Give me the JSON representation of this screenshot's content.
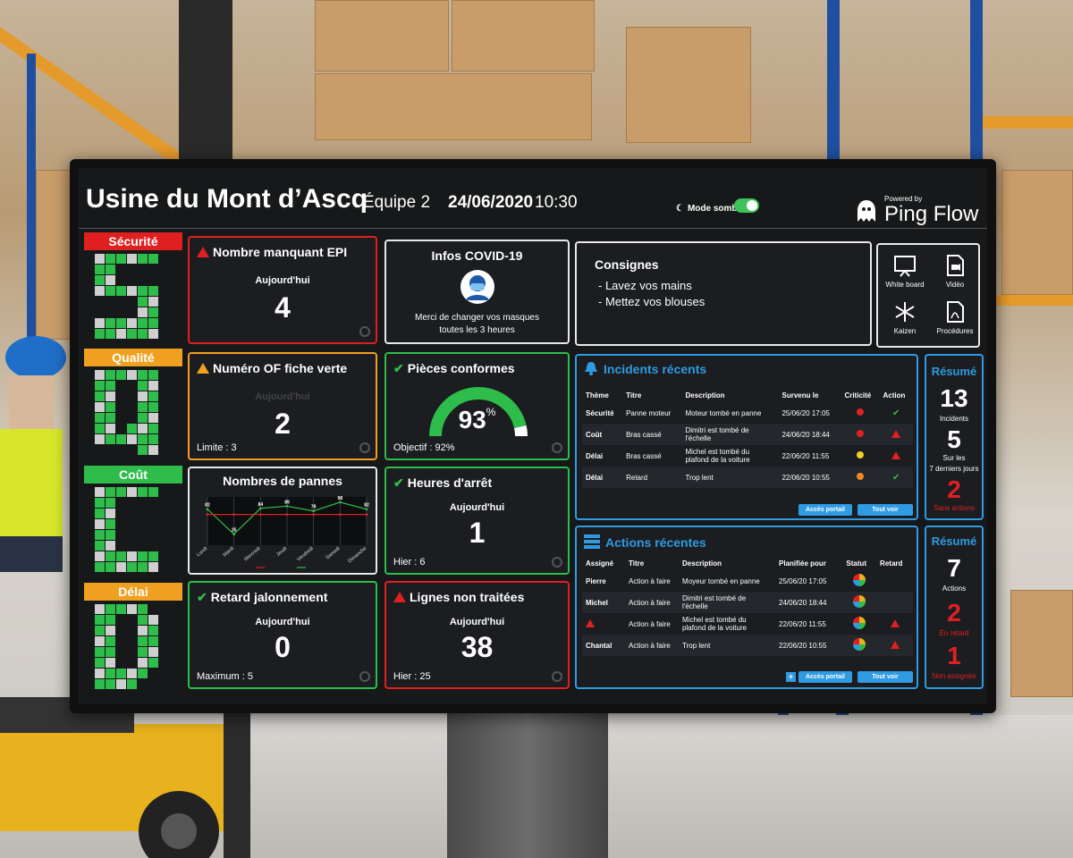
{
  "header": {
    "factory": "Usine du Mont d’Ascq",
    "team": "Équipe 2",
    "date": "24/06/2020",
    "time": "10:30",
    "dark_mode_label": "Mode sombre",
    "powered_by": "Powered by",
    "brand": "Ping Flow"
  },
  "sqcd": [
    {
      "label": "Sécurité",
      "color": "#e02020"
    },
    {
      "label": "Qualité",
      "color": "#f0a020"
    },
    {
      "label": "Coût",
      "color": "#2ebd4a"
    },
    {
      "label": "Délai",
      "color": "#f0a020"
    }
  ],
  "kpis": {
    "epi": {
      "title": "Nombre manquant EPI",
      "sub": "Aujourd'hui",
      "value": "4"
    },
    "of": {
      "title": "Numéro OF fiche verte",
      "sub": "Aujourd'hui",
      "value": "2",
      "foot": "Limite : 3"
    },
    "retard": {
      "title": "Retard jalonnement",
      "sub": "Aujourd'hui",
      "value": "0",
      "foot": "Maximum : 5"
    },
    "pieces": {
      "title": "Pièces conformes",
      "value": "93",
      "unit": "%",
      "foot": "Objectif : 92%",
      "percent": 93
    },
    "heures": {
      "title": "Heures d'arrêt",
      "sub": "Aujourd'hui",
      "value": "1",
      "foot": "Hier : 6"
    },
    "lignes": {
      "title": "Lignes non traitées",
      "sub": "Aujourd'hui",
      "value": "38",
      "foot": "Hier : 25"
    }
  },
  "covid": {
    "title": "Infos COVID-19",
    "text1": "Merci de changer vos masques",
    "text2": "toutes les 3 heures"
  },
  "consignes": {
    "title": "Consignes",
    "line1": "- Lavez vos mains",
    "line2": "- Mettez vos blouses"
  },
  "tools": [
    "White board",
    "Vidéo",
    "Kaizen",
    "Procédures"
  ],
  "chart_data": {
    "type": "line",
    "title": "Nombres de pannes",
    "categories": [
      "Lundi",
      "Mardi",
      "Mercredi",
      "Jeudi",
      "Vendredi",
      "Samedi",
      "Dimanche"
    ],
    "series": [
      {
        "name": "",
        "values": [
          82,
          25,
          84,
          89,
          78,
          98,
          82
        ],
        "color": "#2ebd4a"
      },
      {
        "name": "",
        "values": [
          70,
          70,
          70,
          70,
          70,
          70,
          70
        ],
        "color": "#e02020"
      }
    ],
    "data_labels": [
      "82",
      "25",
      "84",
      "89",
      "78",
      "98",
      "82"
    ],
    "ylim": [
      0,
      110
    ]
  },
  "incidents": {
    "title": "Incidents récents",
    "headers": [
      "Thème",
      "Titre",
      "Description",
      "Survenu le",
      "Criticité",
      "Action"
    ],
    "rows": [
      {
        "theme": "Sécurité",
        "titre": "Panne moteur",
        "desc": "Moteur tombé en panne",
        "date": "25/06/20 17:05",
        "crit": "#e02020",
        "action": "check"
      },
      {
        "theme": "Coût",
        "titre": "Bras cassé",
        "desc": "Dimitri est tombé de l'échelle",
        "date": "24/06/20 18:44",
        "crit": "#e02020",
        "action": "warn"
      },
      {
        "theme": "Délai",
        "titre": "Bras cassé",
        "desc": "Michel est tombé du plafond de la voiture",
        "date": "22/06/20 11:55",
        "crit": "#f0d020",
        "action": "warn"
      },
      {
        "theme": "Délai",
        "titre": "Retard",
        "desc": "Trop lent",
        "date": "22/06/20 10:55",
        "crit": "#f08a20",
        "action": "check"
      }
    ],
    "btn_portal": "Accès portail",
    "btn_all": "Tout voir"
  },
  "actions": {
    "title": "Actions récentes",
    "headers": [
      "Assigné",
      "Titre",
      "Description",
      "Planifiée pour",
      "Statut",
      "Retard"
    ],
    "rows": [
      {
        "assigne": "Pierre",
        "titre": "Action à faire",
        "desc": "Moyeur tombé en panne",
        "date": "25/06/20 17:05",
        "retard": ""
      },
      {
        "assigne": "Michel",
        "titre": "Action à faire",
        "desc": "Dimitri est tombé de l'échelle",
        "date": "24/06/20 18:44",
        "retard": ""
      },
      {
        "assigne": "",
        "titre": "Action à faire",
        "desc": "Michel est tombé du plafond de la voiture",
        "date": "22/06/20 11:55",
        "retard": "warn"
      },
      {
        "assigne": "Chantal",
        "titre": "Action à faire",
        "desc": "Trop lent",
        "date": "22/06/20 10:55",
        "retard": "warn"
      }
    ],
    "btn_portal": "Accès portail",
    "btn_all": "Tout voir"
  },
  "summary1": {
    "title": "Résumé",
    "n1": "13",
    "l1": "Incidents",
    "n2": "5",
    "l2a": "Sur les",
    "l2b": "7 derniers jours",
    "n3": "2",
    "l3": "Sans actions"
  },
  "summary2": {
    "title": "Résumé",
    "n1": "7",
    "l1": "Actions",
    "n2": "2",
    "l2": "En retard",
    "n3": "1",
    "l3": "Non assignée"
  }
}
